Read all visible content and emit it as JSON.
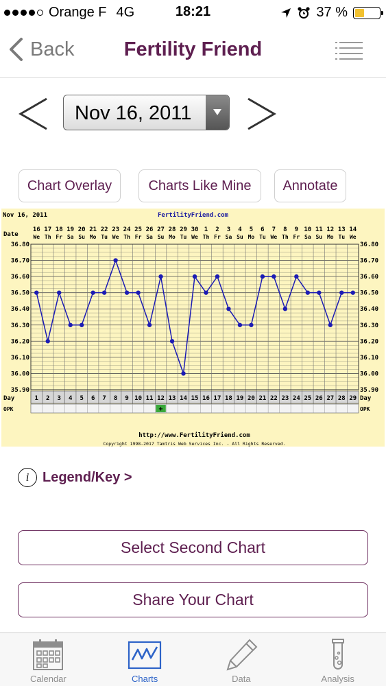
{
  "status": {
    "carrier": "Orange F",
    "network": "4G",
    "time": "18:21",
    "battery": "37 %",
    "battery_level": 0.37
  },
  "nav": {
    "back_label": "Back",
    "title": "Fertility Friend"
  },
  "date_selector": {
    "value": "Nov 16, 2011"
  },
  "actions": {
    "overlay": "Chart Overlay",
    "like_mine": "Charts Like Mine",
    "annotate": "Annotate"
  },
  "legend": {
    "label": "Legend/Key >"
  },
  "buttons": {
    "second_chart": "Select Second Chart",
    "share": "Share Your Chart"
  },
  "tabs": [
    {
      "label": "Calendar",
      "icon": "calendar-icon"
    },
    {
      "label": "Charts",
      "icon": "chart-icon"
    },
    {
      "label": "Data",
      "icon": "pencil-icon"
    },
    {
      "label": "Analysis",
      "icon": "test-tube-icon"
    }
  ],
  "colors": {
    "accent": "#5e1f50",
    "chart_bg": "#fdf5c0",
    "line": "#1c1cb4",
    "active_tab": "#2d63c8",
    "opk_positive": "#3aa83a"
  },
  "chart_data": {
    "type": "line",
    "header_left": "Nov 16, 2011",
    "header_center": "FertilityFriend.com",
    "date_row_label": "Date",
    "day_row_label": "Day",
    "opk_row_label": "OPK",
    "dates": [
      "16",
      "17",
      "18",
      "19",
      "20",
      "21",
      "22",
      "23",
      "24",
      "25",
      "26",
      "27",
      "28",
      "29",
      "30",
      "1",
      "2",
      "3",
      "4",
      "5",
      "6",
      "7",
      "8",
      "9",
      "10",
      "11",
      "12",
      "13",
      "14"
    ],
    "weekdays": [
      "We",
      "Th",
      "Fr",
      "Sa",
      "Su",
      "Mo",
      "Tu",
      "We",
      "Th",
      "Fr",
      "Sa",
      "Su",
      "Mo",
      "Tu",
      "We",
      "Th",
      "Fr",
      "Sa",
      "Su",
      "Mo",
      "Tu",
      "We",
      "Th",
      "Fr",
      "Sa",
      "Su",
      "Mo",
      "Tu",
      "We"
    ],
    "days": [
      "1",
      "2",
      "3",
      "4",
      "5",
      "6",
      "7",
      "8",
      "9",
      "10",
      "11",
      "12",
      "13",
      "14",
      "15",
      "16",
      "17",
      "18",
      "19",
      "20",
      "21",
      "22",
      "23",
      "24",
      "25",
      "26",
      "27",
      "28",
      "29"
    ],
    "temperatures": [
      36.5,
      36.2,
      36.5,
      36.3,
      36.3,
      36.5,
      36.5,
      36.7,
      36.5,
      36.5,
      36.3,
      36.6,
      36.2,
      36.0,
      36.6,
      36.5,
      36.6,
      36.4,
      36.3,
      36.3,
      36.6,
      36.6,
      36.4,
      36.6,
      36.5,
      36.5,
      36.3,
      36.5,
      36.5
    ],
    "ylim": [
      35.9,
      36.8
    ],
    "y_ticks": [
      "35.90",
      "36.00",
      "36.10",
      "36.20",
      "36.30",
      "36.40",
      "36.50",
      "36.60",
      "36.70",
      "36.80"
    ],
    "opk_positive_day": 12,
    "opk_symbol": "+",
    "footer_url": "http://www.FertilityFriend.com",
    "copyright": "Copyright 1998-2017 Tamtris Web Services Inc. - All Rights Reserved.",
    "grid": true
  }
}
